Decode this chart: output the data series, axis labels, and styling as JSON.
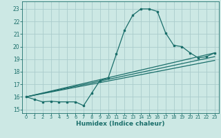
{
  "xlabel": "Humidex (Indice chaleur)",
  "xlim": [
    -0.5,
    23.5
  ],
  "ylim": [
    14.7,
    23.6
  ],
  "yticks": [
    15,
    16,
    17,
    18,
    19,
    20,
    21,
    22,
    23
  ],
  "xticks": [
    0,
    1,
    2,
    3,
    4,
    5,
    6,
    7,
    8,
    9,
    10,
    11,
    12,
    13,
    14,
    15,
    16,
    17,
    18,
    19,
    20,
    21,
    22,
    23
  ],
  "background_color": "#cce8e4",
  "grid_color": "#aacccc",
  "line_color": "#1a6e6a",
  "main_series_x": [
    0,
    1,
    2,
    3,
    4,
    5,
    6,
    7,
    8,
    9,
    10,
    11,
    12,
    13,
    14,
    15,
    16,
    17,
    18,
    19,
    20,
    21,
    22,
    23
  ],
  "main_series_y": [
    16.0,
    15.8,
    15.6,
    15.65,
    15.6,
    15.6,
    15.6,
    15.3,
    16.3,
    17.3,
    17.5,
    19.4,
    21.3,
    22.5,
    23.0,
    23.0,
    22.8,
    21.1,
    20.1,
    20.0,
    19.5,
    19.1,
    19.2,
    19.5
  ],
  "line1": {
    "x": [
      0,
      23
    ],
    "y": [
      16.0,
      19.5
    ]
  },
  "line2": {
    "x": [
      0,
      23
    ],
    "y": [
      16.0,
      19.2
    ]
  },
  "line3": {
    "x": [
      0,
      23
    ],
    "y": [
      16.0,
      18.9
    ]
  }
}
